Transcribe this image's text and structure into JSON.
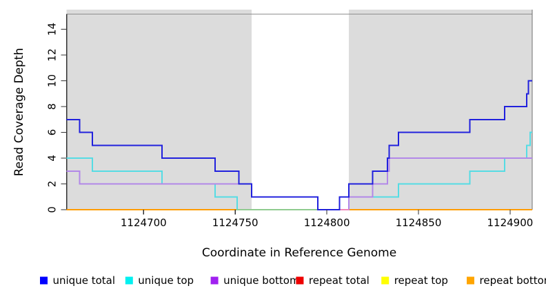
{
  "chart_data": {
    "type": "line",
    "subtype": "step",
    "title": "",
    "xlabel": "Coordinate in Reference Genome",
    "ylabel": "Read Coverage Depth",
    "xlim": [
      1124658,
      1124912
    ],
    "ylim": [
      0,
      15.1
    ],
    "x_ticks": [
      1124700,
      1124750,
      1124800,
      1124850,
      1124900
    ],
    "y_ticks": [
      0,
      2,
      4,
      6,
      8,
      10,
      12,
      14
    ],
    "grid": false,
    "legend_position": "bottom",
    "shaded_color": "#dcdcdc",
    "shaded_regions": [
      [
        1124658,
        1124759
      ],
      [
        1124812,
        1124912
      ]
    ],
    "unshaded_region": [
      1124759,
      1124812
    ],
    "draw_order": [
      "repeat total",
      "repeat top",
      "repeat bottom",
      "unique top",
      "unique bottom",
      "unique total"
    ],
    "series": [
      {
        "name": "unique total",
        "legend_color": "#0000ff",
        "line_color": "#2020dd",
        "end": 1124912,
        "steps": [
          [
            1124658,
            7
          ],
          [
            1124665,
            6
          ],
          [
            1124672,
            5
          ],
          [
            1124710,
            4
          ],
          [
            1124739,
            3
          ],
          [
            1124752,
            2
          ],
          [
            1124759,
            1
          ],
          [
            1124795,
            0
          ],
          [
            1124807,
            1
          ],
          [
            1124812,
            2
          ],
          [
            1124825,
            3
          ],
          [
            1124833,
            4
          ],
          [
            1124834,
            5
          ],
          [
            1124839,
            6
          ],
          [
            1124878,
            7
          ],
          [
            1124897,
            8
          ],
          [
            1124909,
            9
          ],
          [
            1124910,
            10
          ]
        ]
      },
      {
        "name": "unique top",
        "legend_color": "#00f0f0",
        "line_color": "#55dce4",
        "end": 1124912,
        "steps": [
          [
            1124658,
            4
          ],
          [
            1124672,
            3
          ],
          [
            1124710,
            2
          ],
          [
            1124739,
            1
          ],
          [
            1124751,
            0
          ],
          [
            1124807,
            1
          ],
          [
            1124839,
            2
          ],
          [
            1124878,
            3
          ],
          [
            1124897,
            4
          ],
          [
            1124909,
            5
          ],
          [
            1124911,
            6
          ]
        ]
      },
      {
        "name": "unique bottom",
        "legend_color": "#a020f0",
        "line_color": "#b287e8",
        "end": 1124912,
        "steps": [
          [
            1124658,
            3
          ],
          [
            1124665,
            2
          ],
          [
            1124759,
            1
          ],
          [
            1124795,
            0
          ],
          [
            1124812,
            1
          ],
          [
            1124825,
            2
          ],
          [
            1124833,
            3
          ],
          [
            1124834,
            4
          ]
        ]
      },
      {
        "name": "repeat total",
        "legend_color": "#ee0000",
        "line_color": "#dd2222",
        "end": 1124912,
        "steps": [
          [
            1124658,
            0
          ]
        ]
      },
      {
        "name": "repeat top",
        "legend_color": "#ffff00",
        "line_color": "#eeee22",
        "end": 1124912,
        "steps": [
          [
            1124658,
            0
          ]
        ]
      },
      {
        "name": "repeat bottom",
        "legend_color": "#ffa500",
        "line_color": "#ff9c00",
        "end": 1124912,
        "steps": [
          [
            1124658,
            0
          ]
        ]
      }
    ],
    "overlap_tints": [
      {
        "name": "unique-top-at-zero",
        "color": "#8fcb8f",
        "value": 0,
        "from": 1124751,
        "to": 1124807,
        "after": "unique top"
      },
      {
        "name": "unique-bottom-at-zero",
        "color": "#ef86b8",
        "value": 0,
        "from": 1124807,
        "to": 1124812,
        "after": "unique bottom"
      }
    ]
  },
  "legend": {
    "items": [
      {
        "label": "unique total",
        "color": "#0000ff"
      },
      {
        "label": "unique top",
        "color": "#00f0f0"
      },
      {
        "label": "unique bottom",
        "color": "#a020f0"
      },
      {
        "label": "repeat total",
        "color": "#ee0000"
      },
      {
        "label": "repeat top",
        "color": "#ffff00"
      },
      {
        "label": "repeat bottom",
        "color": "#ffa500"
      }
    ]
  }
}
